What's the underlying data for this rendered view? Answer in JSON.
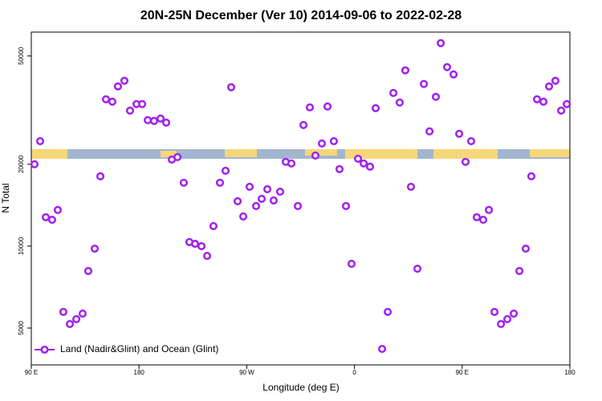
{
  "chart_data": {
    "type": "scatter",
    "title": "20N-25N December (Ver 10)   2014-09-06 to 2022-02-28",
    "x_label": "Longitude (deg E)",
    "y_label": "N Total",
    "y_scale": "log",
    "legend_position": "lower left",
    "xlim": [
      90,
      540
    ],
    "ylim": [
      3660,
      61200
    ],
    "xticks": [
      {
        "value": 90,
        "label": "90 E"
      },
      {
        "value": 180,
        "label": "180"
      },
      {
        "value": 270,
        "label": "90 W"
      },
      {
        "value": 360,
        "label": "0"
      },
      {
        "value": 450,
        "label": "90 E"
      },
      {
        "value": 540,
        "label": "180"
      }
    ],
    "yticks": [
      5000,
      10000,
      20000,
      50000
    ],
    "series": [
      {
        "name": "Land (Nadir&Glint) and Ocean (Glint)",
        "color": "#a020f0",
        "x": [
          92.7,
          97.4,
          102.1,
          107.4,
          112.1,
          116.8,
          122.2,
          127.6,
          132.9,
          137.6,
          143,
          147.7,
          152.4,
          157.7,
          162.4,
          167.8,
          172.5,
          177.9,
          182.6,
          187.3,
          192.6,
          198,
          202.7,
          207.4,
          212.1,
          217.4,
          222.1,
          226.8,
          232.2,
          236.9,
          242.2,
          247.6,
          252.3,
          257,
          262.4,
          267.1,
          272.4,
          277.8,
          282.5,
          287.2,
          292.5,
          297.9,
          302.6,
          307.3,
          312.7,
          317.4,
          322.7,
          327.4,
          332.8,
          337.5,
          342.8,
          347.5,
          352.9,
          357.6,
          363,
          367.7,
          373,
          377.7,
          383.1,
          387.8,
          392.5,
          397.8,
          402.5,
          407.2,
          412.6,
          418,
          422.7,
          428,
          432.1,
          437.4,
          442.8,
          447.5,
          452.8,
          457.5,
          462.2,
          467.6,
          472.3,
          477,
          482.4,
          487.7,
          493.1,
          497.8,
          503.1,
          507.8,
          512.5,
          517.9,
          522.6,
          527.9,
          532.7,
          537.4
        ],
        "values": [
          20000,
          24300,
          12770,
          12500,
          13580,
          5730,
          5170,
          5390,
          5650,
          8100,
          9790,
          18060,
          34660,
          33960,
          38640,
          40550,
          31490,
          33270,
          33270,
          29040,
          28840,
          29440,
          28440,
          20800,
          21240,
          17100,
          10350,
          10200,
          10000,
          9210,
          11850,
          17100,
          18920,
          38370,
          14620,
          12850,
          16520,
          14040,
          14920,
          16190,
          14720,
          15850,
          20400,
          20130,
          14040,
          27860,
          32360,
          21530,
          23840,
          32590,
          24300,
          19190,
          14040,
          8610,
          20950,
          20130,
          19590,
          32140,
          4190,
          5730,
          36560,
          33730,
          44260,
          16520,
          8260,
          39450,
          26420,
          35380,
          55720,
          45500,
          42760,
          25880,
          20400,
          24300,
          12770,
          12500,
          13580,
          5730,
          5170,
          5390,
          5650,
          8100,
          9790,
          18060,
          34660,
          33960,
          38640,
          40550,
          31490,
          33270
        ]
      }
    ]
  }
}
